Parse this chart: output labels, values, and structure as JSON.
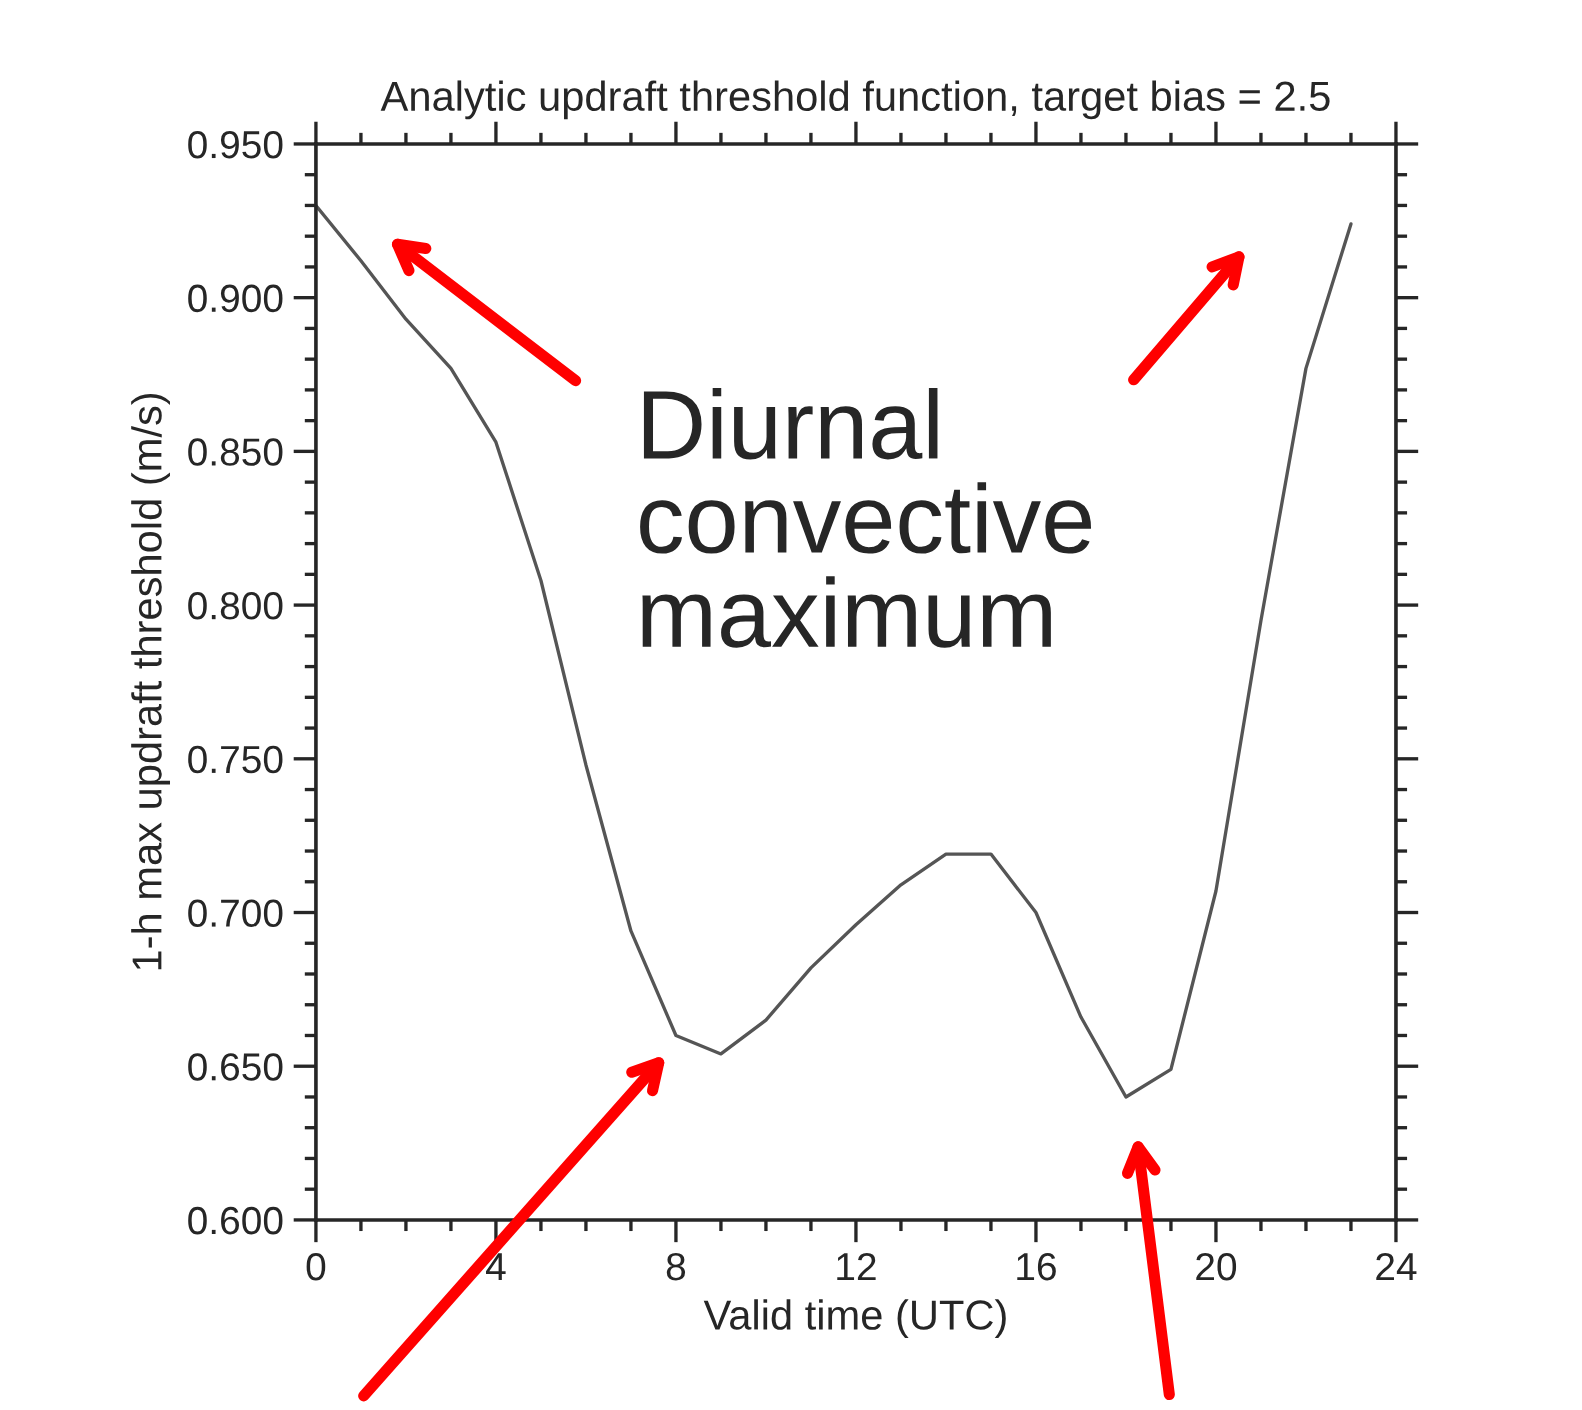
{
  "chart_data": {
    "type": "line",
    "title": "Analytic updraft threshold function, target bias = 2.5",
    "xlabel": "Valid time (UTC)",
    "ylabel": "1-h max updraft threshold (m/s)",
    "annotations": [
      "Diurnal\nconvective\nmaximum"
    ],
    "x": [
      0,
      1,
      2,
      3,
      4,
      5,
      6,
      7,
      8,
      9,
      10,
      11,
      12,
      13,
      14,
      15,
      16,
      17,
      18,
      19,
      20,
      21,
      22,
      23
    ],
    "series": [
      {
        "color": "#555555",
        "values": [
          0.93,
          0.912,
          0.893,
          0.877,
          0.853,
          0.808,
          0.748,
          0.694,
          0.66,
          0.654,
          0.665,
          0.682,
          0.696,
          0.709,
          0.719,
          0.719,
          0.7,
          0.666,
          0.64,
          0.649,
          0.707,
          0.795,
          0.877,
          0.924
        ]
      }
    ],
    "xlim": [
      0,
      24
    ],
    "xticks": [
      0,
      4,
      8,
      12,
      16,
      20,
      24
    ],
    "ylim": [
      0.6,
      0.95
    ],
    "yticks": [
      {
        "value": 0.6,
        "label": "0.600"
      },
      {
        "value": 0.65,
        "label": "0.650"
      },
      {
        "value": 0.7,
        "label": "0.700"
      },
      {
        "value": 0.75,
        "label": "0.750"
      },
      {
        "value": 0.8,
        "label": "0.800"
      },
      {
        "value": 0.85,
        "label": "0.850"
      },
      {
        "value": 0.9,
        "label": "0.900"
      },
      {
        "value": 0.95,
        "label": "0.950"
      }
    ],
    "grid": false,
    "legend": false,
    "marker": "none",
    "line_style": "solid"
  }
}
